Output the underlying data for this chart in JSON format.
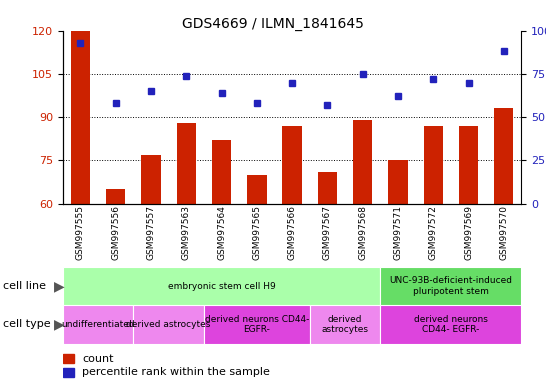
{
  "title": "GDS4669 / ILMN_1841645",
  "samples": [
    "GSM997555",
    "GSM997556",
    "GSM997557",
    "GSM997563",
    "GSM997564",
    "GSM997565",
    "GSM997566",
    "GSM997567",
    "GSM997568",
    "GSM997571",
    "GSM997572",
    "GSM997569",
    "GSM997570"
  ],
  "count_values": [
    120,
    65,
    77,
    88,
    82,
    70,
    87,
    71,
    89,
    75,
    87,
    87,
    93
  ],
  "percentile_values": [
    93,
    58,
    65,
    74,
    64,
    58,
    70,
    57,
    75,
    62,
    72,
    70,
    88
  ],
  "ylim_left": [
    60,
    120
  ],
  "ylim_right": [
    0,
    100
  ],
  "yticks_left": [
    60,
    75,
    90,
    105,
    120
  ],
  "yticks_right": [
    0,
    25,
    50,
    75,
    100
  ],
  "bar_color": "#cc2200",
  "percentile_color": "#2222bb",
  "cell_line_groups": [
    {
      "label": "embryonic stem cell H9",
      "start": 0,
      "end": 9,
      "color": "#aaffaa"
    },
    {
      "label": "UNC-93B-deficient-induced\npluripotent stem",
      "start": 9,
      "end": 13,
      "color": "#66dd66"
    }
  ],
  "cell_type_groups": [
    {
      "label": "undifferentiated",
      "start": 0,
      "end": 2,
      "color": "#ee88ee"
    },
    {
      "label": "derived astrocytes",
      "start": 2,
      "end": 4,
      "color": "#ee88ee"
    },
    {
      "label": "derived neurons CD44-\nEGFR-",
      "start": 4,
      "end": 7,
      "color": "#dd44dd"
    },
    {
      "label": "derived\nastrocytes",
      "start": 7,
      "end": 9,
      "color": "#ee88ee"
    },
    {
      "label": "derived neurons\nCD44- EGFR-",
      "start": 9,
      "end": 13,
      "color": "#dd44dd"
    }
  ],
  "legend_count_label": "count",
  "legend_percentile_label": "percentile rank within the sample",
  "bar_width": 0.55,
  "grid_lines": [
    75,
    90,
    105
  ]
}
